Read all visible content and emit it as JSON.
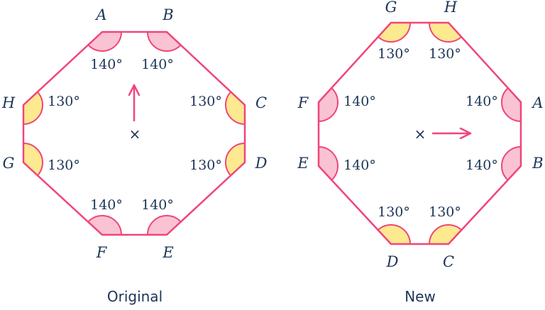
{
  "colors": {
    "outline": "#f0457a",
    "angle_140": "#f9c3d3",
    "angle_130": "#fde98f",
    "text": "#1d3557"
  },
  "original": {
    "caption": "Original",
    "vertices": [
      {
        "name": "A",
        "angle": "140°"
      },
      {
        "name": "B",
        "angle": "140°"
      },
      {
        "name": "C",
        "angle": "130°"
      },
      {
        "name": "D",
        "angle": "130°"
      },
      {
        "name": "E",
        "angle": "140°"
      },
      {
        "name": "F",
        "angle": "140°"
      },
      {
        "name": "G",
        "angle": "130°"
      },
      {
        "name": "H",
        "angle": "130°"
      }
    ],
    "centre_marker": "×",
    "arrow_direction": "up"
  },
  "new": {
    "caption": "New",
    "vertices": [
      {
        "name": "A",
        "angle": "140°"
      },
      {
        "name": "B",
        "angle": "140°"
      },
      {
        "name": "C",
        "angle": "130°"
      },
      {
        "name": "D",
        "angle": "130°"
      },
      {
        "name": "E",
        "angle": "140°"
      },
      {
        "name": "F",
        "angle": "140°"
      },
      {
        "name": "G",
        "angle": "130°"
      },
      {
        "name": "H",
        "angle": "130°"
      }
    ],
    "centre_marker": "×",
    "arrow_direction": "right"
  }
}
